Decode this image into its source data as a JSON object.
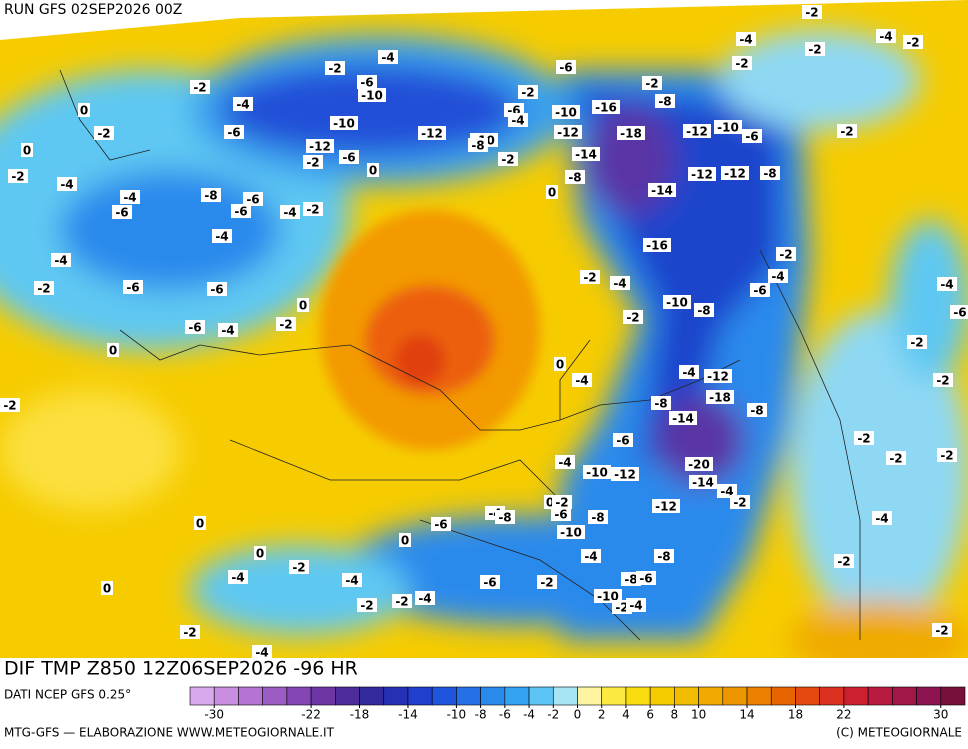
{
  "header": {
    "title": "RUN GFS 02SEP2026 00Z"
  },
  "map": {
    "contour_labels": [
      -2,
      -4,
      -6,
      -10,
      -2,
      -4,
      0,
      -2,
      -6,
      -10,
      -12,
      -12,
      -6,
      -2,
      0,
      0,
      -2,
      -4,
      -4,
      -6,
      -8,
      -6,
      -6,
      -4,
      -2,
      -4,
      -4,
      -2,
      -6,
      -6,
      0,
      -6,
      -4,
      -2,
      0,
      -2,
      -6,
      -2,
      -6,
      -10,
      -16,
      -12,
      -18,
      -4,
      -10,
      -8,
      -2,
      -14,
      -8,
      0,
      -2,
      -8,
      -12,
      -10,
      -6,
      -12,
      -12,
      -8,
      -14,
      -16,
      -2,
      -4,
      -10,
      -8,
      -2,
      -4,
      -6,
      -2,
      0,
      -4,
      -4,
      -12,
      -18,
      -8,
      -14,
      -8,
      -6,
      -4,
      -10,
      -12,
      -20,
      -14,
      -4,
      -12,
      -2,
      0,
      -2,
      -4,
      -8,
      -6,
      -6,
      -8,
      -10,
      0,
      -4,
      -8,
      -6,
      -2,
      -8,
      -6,
      -10,
      -2,
      -4,
      -2,
      -4,
      0,
      -4,
      0,
      0,
      -2,
      -2,
      -4,
      -2,
      -4,
      -2,
      -4,
      -2,
      -4,
      -2,
      -2,
      -2,
      -4,
      -6,
      -2,
      -2,
      -2,
      -2,
      -2,
      -4,
      -2,
      -2
    ]
  },
  "footer": {
    "field": "DIF TMP Z850 12Z06SEP2026 -96 HR",
    "source": "DATI NCEP GFS 0.25°",
    "credit_left": "MTG-GFS — ELABORAZIONE WWW.METEOGIORNALE.IT",
    "credit_right": "(C) METEOGIORNALE"
  },
  "colorbar": {
    "range": [
      -32,
      32
    ],
    "ticks": [
      -30,
      -22,
      -18,
      -14,
      -10,
      -8,
      -6,
      -4,
      -2,
      0,
      2,
      4,
      6,
      8,
      10,
      14,
      18,
      22,
      30
    ],
    "colors": [
      "#d8a8ec",
      "#c98ee0",
      "#b574d4",
      "#9d5cc4",
      "#8446b4",
      "#6d36a4",
      "#4e2c9a",
      "#35299e",
      "#2530b4",
      "#1f40cc",
      "#1f55dc",
      "#2470e4",
      "#2a8aec",
      "#34a4f2",
      "#5cc4f4",
      "#a8e4f4",
      "#fff4a0",
      "#fce840",
      "#f8dc10",
      "#f5cc00",
      "#f2bc00",
      "#f0aa00",
      "#ee9600",
      "#ec8000",
      "#e86400",
      "#e44a10",
      "#dc3020",
      "#cc2030",
      "#b81a40",
      "#a01848",
      "#8c1450",
      "#78103c"
    ]
  }
}
